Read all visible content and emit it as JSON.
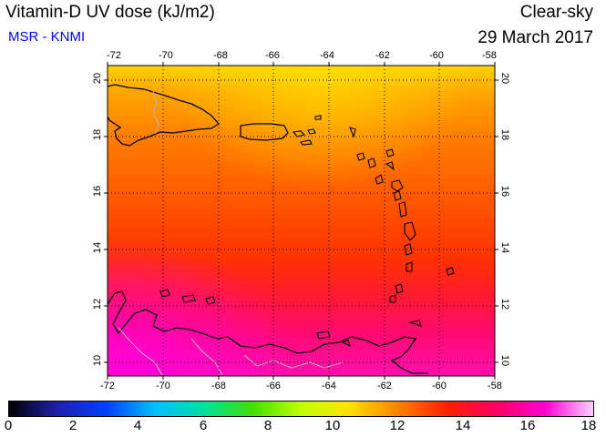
{
  "header": {
    "title": "Vitamin-D UV dose (kJ/m2)",
    "credit": "MSR - KNMI",
    "condition": "Clear-sky",
    "date": "29 March 2017"
  },
  "map": {
    "lon_range": [
      -72,
      -58
    ],
    "lat_range": [
      9.5,
      20.5
    ],
    "lon_ticks": [
      "-72",
      "-70",
      "-68",
      "-66",
      "-64",
      "-62",
      "-60",
      "-58"
    ],
    "lat_ticks": [
      "10",
      "12",
      "14",
      "16",
      "18",
      "20"
    ],
    "grid": true,
    "colors": {
      "north_edge": "#ffd000",
      "north": "#ff9a00",
      "central": "#ff5a00",
      "south": "#ff1a2a",
      "far_south": "#ff00cc",
      "coast": "#000000",
      "borders": "#c0c0c0"
    }
  },
  "colorbar": {
    "min": 0,
    "max": 18,
    "ticks": [
      "0",
      "2",
      "4",
      "6",
      "8",
      "10",
      "12",
      "14",
      "16",
      "18"
    ],
    "colors": [
      "#000000",
      "#2020b0",
      "#0040ff",
      "#00c0ff",
      "#00e0a0",
      "#40e000",
      "#c0ff00",
      "#ffe000",
      "#ff8000",
      "#ff2000",
      "#ff0060",
      "#ff00d0",
      "#ffd0ff"
    ]
  }
}
